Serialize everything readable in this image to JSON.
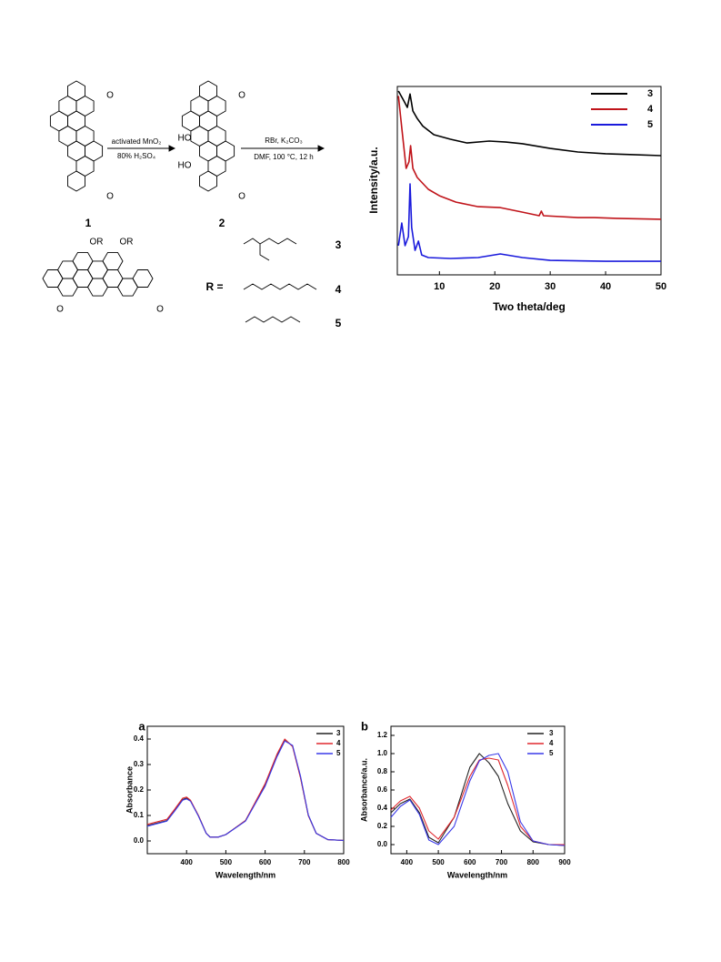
{
  "scheme": {
    "reagents_1": [
      "activated MnO₂",
      "80% H₂SO₄"
    ],
    "reagents_2": [
      "RBr, K₂CO₃",
      "DMF, 100 °C, 12 h"
    ],
    "compounds": [
      "1",
      "2"
    ],
    "r_label": "R =",
    "r_groups": [
      "3",
      "4",
      "5"
    ],
    "atoms": [
      "O",
      "O",
      "O",
      "O",
      "HO",
      "HO",
      "OR",
      "OR",
      "O",
      "O"
    ]
  },
  "chart_data": [
    {
      "type": "line",
      "xlabel": "Two theta/deg",
      "ylabel": "Intensity/a.u.",
      "xlim": [
        2.4,
        50
      ],
      "ylim": [
        0,
        100
      ],
      "xticks": [
        10,
        20,
        30,
        40,
        50
      ],
      "legend": "upper right",
      "series": [
        {
          "name": "3",
          "color": "#000000",
          "x": [
            2.6,
            3.5,
            4.2,
            4.7,
            5.2,
            6,
            7,
            9,
            12,
            15,
            19,
            22,
            25,
            30,
            35,
            40,
            45,
            50
          ],
          "values": [
            97.6,
            92.8,
            88.9,
            96,
            87,
            83,
            79,
            74.4,
            72,
            70,
            71,
            70.5,
            69.6,
            67.1,
            65.2,
            64.3,
            63.8,
            63.3
          ]
        },
        {
          "name": "4",
          "color": "#c0141a",
          "x": [
            2.6,
            3.2,
            4,
            4.5,
            4.8,
            5.2,
            6,
            8,
            10,
            13,
            17,
            21,
            25,
            28,
            28.4,
            28.8,
            35,
            38,
            42,
            50
          ],
          "values": [
            95,
            78,
            56.5,
            60,
            68.6,
            56.5,
            51.7,
            45.4,
            42,
            38.6,
            36.2,
            35.7,
            33.3,
            31.4,
            33.8,
            31.4,
            30.4,
            30.4,
            30,
            29.5
          ]
        },
        {
          "name": "5",
          "color": "#1a1adc",
          "x": [
            2.6,
            3.2,
            3.8,
            4.4,
            4.7,
            5,
            5.6,
            6.2,
            6.8,
            8,
            12,
            17,
            21,
            25,
            30,
            40,
            50
          ],
          "values": [
            15.5,
            27.5,
            15.5,
            20.3,
            48.3,
            25.1,
            13,
            17.9,
            10.6,
            9.2,
            8.7,
            9.2,
            11.1,
            9.2,
            7.7,
            7.2,
            7.2
          ]
        }
      ]
    },
    {
      "type": "line",
      "panel": "a",
      "xlabel": "Wavelength/nm",
      "ylabel": "Absorbance",
      "xlim": [
        300,
        800
      ],
      "ylim": [
        -0.05,
        0.45
      ],
      "xticks": [
        400,
        500,
        600,
        700,
        800
      ],
      "yticks": [
        {
          "value": 0,
          "label": "0.0"
        },
        0.1,
        0.2,
        0.3,
        0.4
      ],
      "legend": "upper right",
      "x": [
        300,
        350,
        370,
        390,
        400,
        410,
        430,
        450,
        460,
        480,
        500,
        550,
        600,
        630,
        650,
        670,
        690,
        710,
        730,
        760,
        800
      ],
      "series": [
        {
          "name": "3",
          "color": "#222222",
          "values": [
            0.06,
            0.08,
            0.12,
            0.163,
            0.168,
            0.158,
            0.1,
            0.03,
            0.015,
            0.015,
            0.025,
            0.08,
            0.22,
            0.335,
            0.398,
            0.372,
            0.25,
            0.1,
            0.03,
            0.005,
            0.002
          ]
        },
        {
          "name": "4",
          "color": "#e0282e",
          "values": [
            0.065,
            0.085,
            0.125,
            0.168,
            0.172,
            0.16,
            0.1,
            0.03,
            0.015,
            0.015,
            0.025,
            0.08,
            0.225,
            0.34,
            0.4,
            0.37,
            0.248,
            0.1,
            0.03,
            0.005,
            0.002
          ]
        },
        {
          "name": "5",
          "color": "#3a3ae8",
          "values": [
            0.058,
            0.078,
            0.118,
            0.16,
            0.165,
            0.156,
            0.098,
            0.03,
            0.015,
            0.015,
            0.025,
            0.078,
            0.215,
            0.33,
            0.392,
            0.375,
            0.255,
            0.102,
            0.03,
            0.005,
            0.002
          ]
        }
      ]
    },
    {
      "type": "line",
      "panel": "b",
      "xlabel": "Wavelength/nm",
      "ylabel": "Absorbance/a.u.",
      "xlim": [
        350,
        900
      ],
      "ylim": [
        -0.1,
        1.3
      ],
      "xticks": [
        400,
        500,
        600,
        700,
        800,
        900
      ],
      "yticks": [
        {
          "value": 0,
          "label": "0.0"
        },
        0.2,
        0.4,
        0.6,
        0.8,
        {
          "value": 1,
          "label": "1.0"
        },
        1.2
      ],
      "legend": "upper right",
      "x": [
        350,
        380,
        410,
        440,
        470,
        500,
        550,
        600,
        630,
        660,
        690,
        720,
        760,
        800,
        850,
        900
      ],
      "series": [
        {
          "name": "3",
          "color": "#222222",
          "values": [
            0.35,
            0.45,
            0.5,
            0.35,
            0.08,
            0.02,
            0.3,
            0.85,
            1.0,
            0.9,
            0.75,
            0.45,
            0.15,
            0.03,
            0,
            -0.01
          ]
        },
        {
          "name": "4",
          "color": "#e0282e",
          "values": [
            0.38,
            0.48,
            0.53,
            0.4,
            0.15,
            0.06,
            0.3,
            0.75,
            0.93,
            0.95,
            0.93,
            0.65,
            0.2,
            0.04,
            0,
            0
          ]
        },
        {
          "name": "5",
          "color": "#3a3ae8",
          "values": [
            0.3,
            0.42,
            0.49,
            0.33,
            0.05,
            0,
            0.2,
            0.7,
            0.92,
            0.98,
            1.0,
            0.8,
            0.25,
            0.04,
            0,
            -0.01
          ]
        }
      ]
    }
  ]
}
